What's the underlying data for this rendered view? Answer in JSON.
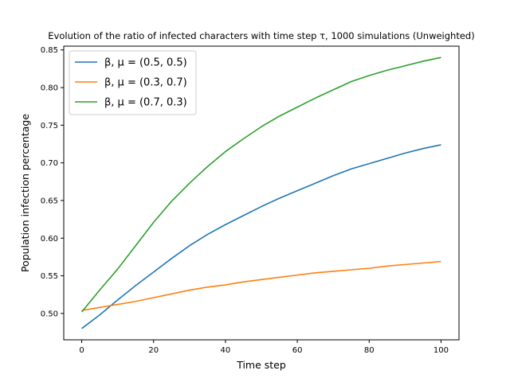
{
  "chart_data": {
    "type": "line",
    "title": "Evolution of the ratio of infected characters with time step τ, 1000 simulations (Unweighted)",
    "xlabel": "Time step",
    "ylabel": "Population infection percentage",
    "xlim": [
      -5,
      105
    ],
    "ylim": [
      0.465,
      0.855
    ],
    "xticks": [
      0,
      20,
      40,
      60,
      80,
      100
    ],
    "yticks": [
      0.5,
      0.55,
      0.6,
      0.65,
      0.7,
      0.75,
      0.8,
      0.85
    ],
    "ytick_labels": [
      "0.50",
      "0.55",
      "0.60",
      "0.65",
      "0.70",
      "0.75",
      "0.80",
      "0.85"
    ],
    "grid": false,
    "legend_position": "top-left",
    "x": [
      0,
      5,
      10,
      15,
      20,
      25,
      30,
      35,
      40,
      45,
      50,
      55,
      60,
      65,
      70,
      75,
      80,
      85,
      90,
      95,
      100
    ],
    "series": [
      {
        "name": "β, μ = (0.5, 0.5)",
        "color": "#1f77b4",
        "values": [
          0.48,
          0.498,
          0.518,
          0.537,
          0.555,
          0.573,
          0.59,
          0.605,
          0.618,
          0.63,
          0.642,
          0.653,
          0.663,
          0.673,
          0.683,
          0.692,
          0.699,
          0.706,
          0.713,
          0.719,
          0.724
        ]
      },
      {
        "name": "β, μ = (0.3, 0.7)",
        "color": "#ff7f0e",
        "values": [
          0.504,
          0.508,
          0.512,
          0.516,
          0.521,
          0.526,
          0.531,
          0.535,
          0.538,
          0.542,
          0.545,
          0.548,
          0.551,
          0.554,
          0.556,
          0.558,
          0.56,
          0.563,
          0.565,
          0.567,
          0.569
        ]
      },
      {
        "name": "β, μ = (0.7, 0.3)",
        "color": "#2ca02c",
        "values": [
          0.502,
          0.531,
          0.559,
          0.59,
          0.621,
          0.649,
          0.673,
          0.695,
          0.715,
          0.732,
          0.748,
          0.762,
          0.774,
          0.786,
          0.797,
          0.808,
          0.816,
          0.823,
          0.829,
          0.835,
          0.84
        ]
      }
    ]
  }
}
